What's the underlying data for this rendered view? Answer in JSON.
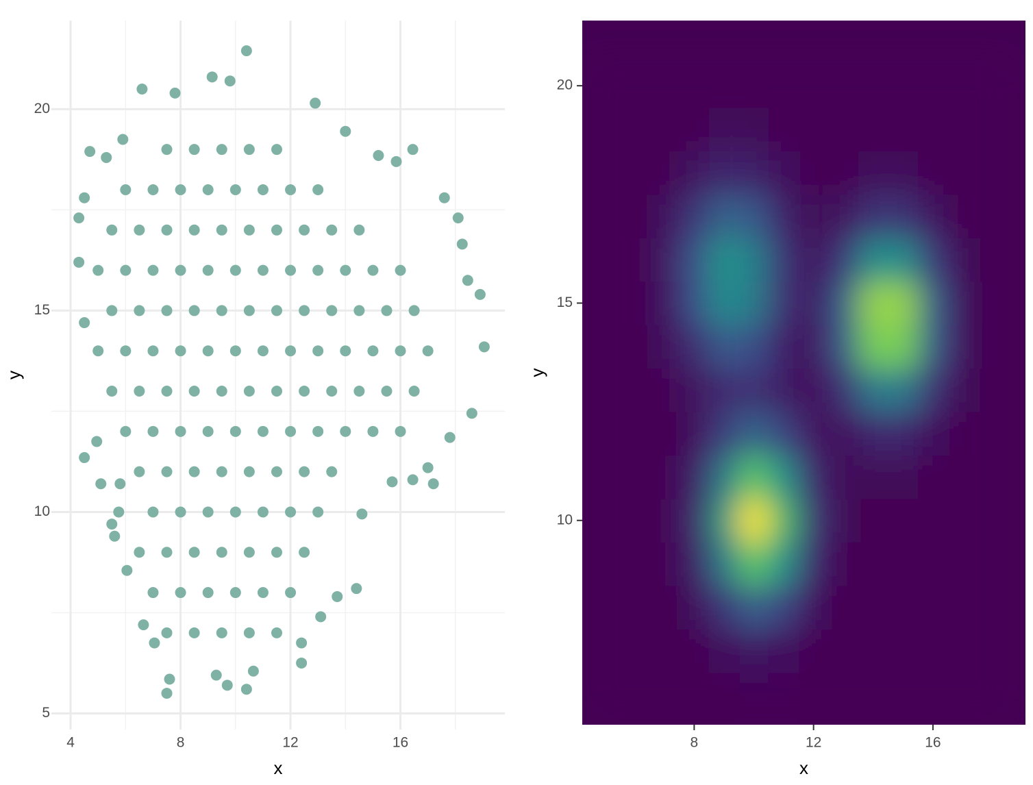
{
  "chart_data": [
    {
      "type": "scatter",
      "color": "#7fb2a4",
      "xlabel": "x",
      "ylabel": "y",
      "xlim": [
        3.3,
        19.8
      ],
      "ylim": [
        4.6,
        22.2
      ],
      "xticks": [
        4,
        8,
        12,
        16
      ],
      "yticks": [
        5,
        10,
        15,
        20
      ],
      "x_minor_grid": [
        6,
        10,
        14,
        18
      ],
      "y_minor_grid": [
        7.5,
        12.5,
        17.5
      ],
      "grid": true,
      "x": [
        10.4,
        6.6,
        9.15,
        9.8,
        7.8,
        12.9,
        4.3,
        4.5,
        4.3,
        4.5,
        4.5,
        4.95,
        5.6,
        5.5,
        7.5,
        7.6,
        9.7,
        10.4,
        10.65,
        9.3,
        12.4,
        14.4,
        13.7,
        13.1,
        17.2,
        16.45,
        17.0,
        17.8,
        18.6,
        19.05,
        18.9,
        18.45,
        18.25,
        18.1,
        17.6,
        16.45,
        15.85,
        15.2,
        14.0,
        4.7,
        5.3,
        5.9,
        5.1,
        5.8,
        5.75,
        6.05,
        6.65,
        7.05,
        12.4,
        14.6,
        15.7,
        7.5,
        8.5,
        9.5,
        10.5,
        11.5,
        6,
        7,
        8,
        9,
        10,
        11,
        12,
        13,
        5.5,
        6.5,
        7.5,
        8.5,
        9.5,
        10.5,
        11.5,
        12.5,
        13.5,
        14.5,
        5,
        6,
        7,
        8,
        9,
        10,
        11,
        12,
        13,
        14,
        15,
        16,
        5.5,
        6.5,
        7.5,
        8.5,
        9.5,
        10.5,
        11.5,
        12.5,
        13.5,
        14.5,
        15.5,
        16.5,
        5,
        6,
        7,
        8,
        9,
        10,
        11,
        12,
        13,
        14,
        15,
        16,
        17,
        5.5,
        6.5,
        7.5,
        8.5,
        9.5,
        10.5,
        11.5,
        12.5,
        13.5,
        14.5,
        15.5,
        16.5,
        6,
        7,
        8,
        9,
        10,
        11,
        12,
        13,
        14,
        15,
        16,
        6.5,
        7.5,
        8.5,
        9.5,
        10.5,
        11.5,
        12.5,
        13.5,
        7,
        8,
        9,
        10,
        11,
        12,
        13,
        6.5,
        7.5,
        8.5,
        9.5,
        10.5,
        11.5,
        12.5,
        7,
        8,
        9,
        10,
        11,
        12,
        7.5,
        8.5,
        9.5,
        10.5,
        11.5
      ],
      "y": [
        21.45,
        20.5,
        20.8,
        20.7,
        20.4,
        20.15,
        17.3,
        17.8,
        16.2,
        14.7,
        11.35,
        11.75,
        9.4,
        9.7,
        5.5,
        5.85,
        5.7,
        5.6,
        6.05,
        5.95,
        6.25,
        8.1,
        7.9,
        7.4,
        10.7,
        10.8,
        11.1,
        11.85,
        12.45,
        14.1,
        15.4,
        15.75,
        16.65,
        17.3,
        17.8,
        19.0,
        18.7,
        18.85,
        19.45,
        18.95,
        18.8,
        19.25,
        10.7,
        10.7,
        10.0,
        8.55,
        7.2,
        6.75,
        6.75,
        9.95,
        10.75,
        19,
        19,
        19,
        19,
        19,
        18,
        18,
        18,
        18,
        18,
        18,
        18,
        18,
        17,
        17,
        17,
        17,
        17,
        17,
        17,
        17,
        17,
        17,
        16,
        16,
        16,
        16,
        16,
        16,
        16,
        16,
        16,
        16,
        16,
        16,
        15,
        15,
        15,
        15,
        15,
        15,
        15,
        15,
        15,
        15,
        15,
        15,
        14,
        14,
        14,
        14,
        14,
        14,
        14,
        14,
        14,
        14,
        14,
        14,
        14,
        13,
        13,
        13,
        13,
        13,
        13,
        13,
        13,
        13,
        13,
        13,
        13,
        12,
        12,
        12,
        12,
        12,
        12,
        12,
        12,
        12,
        12,
        12,
        11,
        11,
        11,
        11,
        11,
        11,
        11,
        11,
        10,
        10,
        10,
        10,
        10,
        10,
        10,
        9,
        9,
        9,
        9,
        9,
        9,
        9,
        8,
        8,
        8,
        8,
        8,
        8,
        7,
        7,
        7,
        7,
        7
      ]
    },
    {
      "type": "heatmap",
      "colormap": "viridis",
      "xlabel": "x",
      "ylabel": "y",
      "xlim": [
        4.25,
        19.1
      ],
      "ylim": [
        5.3,
        21.5
      ],
      "xticks": [
        8,
        12,
        16
      ],
      "yticks": [
        10,
        15,
        20
      ],
      "x": [
        5,
        6,
        7,
        8,
        9,
        10,
        11,
        12,
        13,
        14,
        15,
        16,
        17,
        18
      ],
      "y": [
        6,
        7,
        8,
        9,
        10,
        11,
        12,
        13,
        14,
        15,
        16,
        17,
        18,
        19,
        20
      ],
      "z": [
        [
          0,
          0,
          0,
          0,
          0,
          0.01,
          0.01,
          0,
          0,
          0,
          0,
          0,
          0,
          0
        ],
        [
          0,
          0,
          0,
          0.01,
          0.04,
          0.07,
          0.05,
          0.01,
          0,
          0,
          0,
          0,
          0,
          0
        ],
        [
          0,
          0,
          0,
          0.03,
          0.17,
          0.31,
          0.21,
          0.05,
          0,
          0,
          0,
          0,
          0,
          0
        ],
        [
          0,
          0,
          0.01,
          0.08,
          0.41,
          0.74,
          0.5,
          0.12,
          0.01,
          0,
          0,
          0,
          0,
          0
        ],
        [
          0,
          0,
          0.01,
          0.11,
          0.55,
          1,
          0.67,
          0.16,
          0.02,
          0,
          0,
          0,
          0,
          0
        ],
        [
          0,
          0,
          0.01,
          0.08,
          0.41,
          0.74,
          0.5,
          0.12,
          0.02,
          0.02,
          0.02,
          0.01,
          0,
          0
        ],
        [
          0,
          0,
          0,
          0.04,
          0.19,
          0.33,
          0.21,
          0.06,
          0.05,
          0.12,
          0.12,
          0.04,
          0.01,
          0
        ],
        [
          0,
          0,
          0.01,
          0.06,
          0.13,
          0.15,
          0.08,
          0.04,
          0.15,
          0.41,
          0.41,
          0.15,
          0.02,
          0
        ],
        [
          0,
          0,
          0.03,
          0.14,
          0.28,
          0.24,
          0.09,
          0.06,
          0.29,
          0.79,
          0.79,
          0.29,
          0.04,
          0
        ],
        [
          0,
          0.01,
          0.05,
          0.25,
          0.48,
          0.41,
          0.15,
          0.07,
          0.3,
          0.84,
          0.84,
          0.3,
          0.04,
          0
        ],
        [
          0,
          0.01,
          0.06,
          0.26,
          0.51,
          0.43,
          0.16,
          0.05,
          0.18,
          0.49,
          0.49,
          0.18,
          0.02,
          0
        ],
        [
          0,
          0,
          0.04,
          0.17,
          0.32,
          0.28,
          0.1,
          0.02,
          0.06,
          0.16,
          0.16,
          0.06,
          0.01,
          0
        ],
        [
          0,
          0,
          0.01,
          0.06,
          0.12,
          0.1,
          0.04,
          0.01,
          0.01,
          0.03,
          0.03,
          0.01,
          0,
          0
        ],
        [
          0,
          0,
          0,
          0.01,
          0.03,
          0.02,
          0.01,
          0,
          0,
          0,
          0,
          0,
          0,
          0
        ],
        [
          0,
          0,
          0,
          0,
          0,
          0,
          0,
          0,
          0,
          0,
          0,
          0,
          0,
          0
        ]
      ]
    }
  ]
}
